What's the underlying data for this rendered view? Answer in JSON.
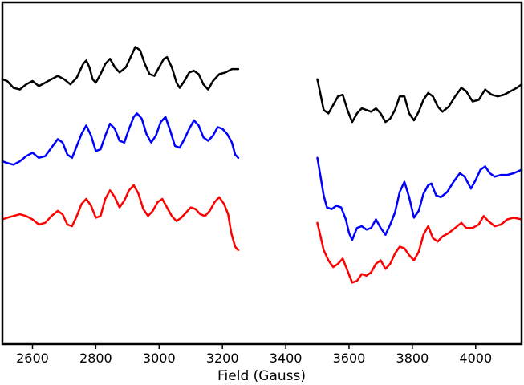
{
  "chart_data": {
    "type": "line",
    "title": "",
    "xlabel": "Field (Gauss)",
    "ylabel": "",
    "xlim": [
      2505,
      4145
    ],
    "ylim": [
      0,
      100
    ],
    "x_ticks": [
      "2600",
      "2800",
      "3000",
      "3200",
      "3400",
      "3600",
      "3800",
      "4000"
    ],
    "y_ticks": [],
    "grid": false,
    "legend": "none",
    "series": [
      {
        "color": "#000000",
        "segments": [
          [
            [
              2505,
              77.5
            ],
            [
              2520,
              77
            ],
            [
              2540,
              75
            ],
            [
              2560,
              74.5
            ],
            [
              2580,
              76
            ],
            [
              2600,
              77
            ],
            [
              2620,
              75.5
            ],
            [
              2640,
              76.5
            ],
            [
              2660,
              77.5
            ],
            [
              2680,
              78.5
            ],
            [
              2700,
              77.5
            ],
            [
              2720,
              76
            ],
            [
              2740,
              78
            ],
            [
              2760,
              82
            ],
            [
              2770,
              83
            ],
            [
              2780,
              81
            ],
            [
              2790,
              77.5
            ],
            [
              2800,
              76.5
            ],
            [
              2815,
              79
            ],
            [
              2830,
              82
            ],
            [
              2845,
              83.5
            ],
            [
              2860,
              81
            ],
            [
              2875,
              79.5
            ],
            [
              2895,
              81
            ],
            [
              2910,
              84
            ],
            [
              2925,
              87
            ],
            [
              2940,
              86
            ],
            [
              2955,
              82
            ],
            [
              2970,
              79
            ],
            [
              2985,
              78.5
            ],
            [
              3000,
              81
            ],
            [
              3015,
              83.5
            ],
            [
              3025,
              84
            ],
            [
              3040,
              81
            ],
            [
              3055,
              76.5
            ],
            [
              3065,
              75
            ],
            [
              3080,
              77
            ],
            [
              3095,
              79.5
            ],
            [
              3110,
              80
            ],
            [
              3125,
              79
            ],
            [
              3140,
              76
            ],
            [
              3155,
              74.5
            ],
            [
              3170,
              77
            ],
            [
              3190,
              79
            ],
            [
              3210,
              79.5
            ],
            [
              3230,
              80.5
            ],
            [
              3250,
              80.5
            ]
          ],
          [
            [
              3500,
              77.5
            ],
            [
              3510,
              73
            ],
            [
              3520,
              68.5
            ],
            [
              3535,
              67.5
            ],
            [
              3550,
              70
            ],
            [
              3565,
              72.5
            ],
            [
              3580,
              73
            ],
            [
              3595,
              68.5
            ],
            [
              3610,
              65
            ],
            [
              3625,
              67.5
            ],
            [
              3640,
              69
            ],
            [
              3655,
              68.5
            ],
            [
              3670,
              68
            ],
            [
              3685,
              69
            ],
            [
              3700,
              67.5
            ],
            [
              3715,
              65
            ],
            [
              3730,
              66
            ],
            [
              3745,
              68.5
            ],
            [
              3760,
              72.5
            ],
            [
              3775,
              72.5
            ],
            [
              3790,
              67.5
            ],
            [
              3805,
              65.5
            ],
            [
              3820,
              68
            ],
            [
              3835,
              71.5
            ],
            [
              3850,
              73.5
            ],
            [
              3865,
              72.5
            ],
            [
              3880,
              69.5
            ],
            [
              3895,
              68
            ],
            [
              3915,
              69.5
            ],
            [
              3935,
              72.5
            ],
            [
              3955,
              75
            ],
            [
              3970,
              74
            ],
            [
              3990,
              71
            ],
            [
              4010,
              71.5
            ],
            [
              4030,
              74.5
            ],
            [
              4050,
              73
            ],
            [
              4070,
              72.5
            ],
            [
              4090,
              73
            ],
            [
              4110,
              74
            ],
            [
              4130,
              75
            ],
            [
              4145,
              76
            ]
          ]
        ]
      },
      {
        "color": "#0000ff",
        "segments": [
          [
            [
              2505,
              53.5
            ],
            [
              2520,
              53
            ],
            [
              2540,
              52.5
            ],
            [
              2560,
              53.5
            ],
            [
              2580,
              55
            ],
            [
              2600,
              56
            ],
            [
              2620,
              54.5
            ],
            [
              2640,
              55
            ],
            [
              2660,
              57.5
            ],
            [
              2680,
              60
            ],
            [
              2695,
              59
            ],
            [
              2710,
              55.5
            ],
            [
              2725,
              54.5
            ],
            [
              2740,
              58
            ],
            [
              2755,
              61.5
            ],
            [
              2770,
              64
            ],
            [
              2785,
              61
            ],
            [
              2800,
              56.5
            ],
            [
              2815,
              57
            ],
            [
              2830,
              61
            ],
            [
              2845,
              64.5
            ],
            [
              2860,
              63
            ],
            [
              2875,
              59.5
            ],
            [
              2890,
              59
            ],
            [
              2905,
              63
            ],
            [
              2920,
              66.5
            ],
            [
              2930,
              67.5
            ],
            [
              2945,
              66
            ],
            [
              2960,
              61.5
            ],
            [
              2975,
              59
            ],
            [
              2990,
              61
            ],
            [
              3005,
              65
            ],
            [
              3020,
              66.5
            ],
            [
              3035,
              62.5
            ],
            [
              3050,
              58
            ],
            [
              3065,
              57.5
            ],
            [
              3080,
              60
            ],
            [
              3095,
              63
            ],
            [
              3110,
              65.5
            ],
            [
              3125,
              64
            ],
            [
              3140,
              60.5
            ],
            [
              3155,
              59.5
            ],
            [
              3170,
              61
            ],
            [
              3185,
              63.5
            ],
            [
              3200,
              63
            ],
            [
              3215,
              61.5
            ],
            [
              3230,
              59
            ],
            [
              3240,
              55.5
            ],
            [
              3250,
              54.5
            ]
          ],
          [
            [
              3500,
              54.5
            ],
            [
              3510,
              49
            ],
            [
              3520,
              43.5
            ],
            [
              3530,
              40
            ],
            [
              3545,
              39.5
            ],
            [
              3560,
              40.5
            ],
            [
              3575,
              40
            ],
            [
              3590,
              36.5
            ],
            [
              3600,
              32.5
            ],
            [
              3610,
              30.5
            ],
            [
              3625,
              34
            ],
            [
              3640,
              34.5
            ],
            [
              3655,
              33.5
            ],
            [
              3670,
              34
            ],
            [
              3685,
              36.5
            ],
            [
              3700,
              34
            ],
            [
              3715,
              32
            ],
            [
              3730,
              35
            ],
            [
              3745,
              38.5
            ],
            [
              3760,
              44.5
            ],
            [
              3775,
              47.5
            ],
            [
              3790,
              43
            ],
            [
              3805,
              37
            ],
            [
              3820,
              39
            ],
            [
              3835,
              44
            ],
            [
              3850,
              46.5
            ],
            [
              3860,
              47
            ],
            [
              3875,
              43.5
            ],
            [
              3890,
              43
            ],
            [
              3910,
              44.5
            ],
            [
              3930,
              47.5
            ],
            [
              3950,
              50
            ],
            [
              3965,
              49
            ],
            [
              3985,
              45.5
            ],
            [
              4000,
              48
            ],
            [
              4015,
              51
            ],
            [
              4030,
              52
            ],
            [
              4045,
              50
            ],
            [
              4060,
              49
            ],
            [
              4080,
              49.5
            ],
            [
              4100,
              49.5
            ],
            [
              4120,
              50
            ],
            [
              4145,
              51
            ]
          ]
        ]
      },
      {
        "color": "#ff0000",
        "segments": [
          [
            [
              2505,
              36.5
            ],
            [
              2520,
              37
            ],
            [
              2540,
              37.5
            ],
            [
              2560,
              38
            ],
            [
              2580,
              37.5
            ],
            [
              2600,
              36.5
            ],
            [
              2620,
              35
            ],
            [
              2640,
              35.5
            ],
            [
              2660,
              37.5
            ],
            [
              2680,
              39
            ],
            [
              2695,
              38
            ],
            [
              2710,
              35
            ],
            [
              2725,
              34.5
            ],
            [
              2740,
              37.5
            ],
            [
              2755,
              41
            ],
            [
              2770,
              42.5
            ],
            [
              2785,
              40.5
            ],
            [
              2800,
              37
            ],
            [
              2815,
              37.5
            ],
            [
              2830,
              42.5
            ],
            [
              2845,
              45
            ],
            [
              2860,
              43
            ],
            [
              2875,
              40
            ],
            [
              2890,
              42
            ],
            [
              2905,
              45
            ],
            [
              2920,
              46.5
            ],
            [
              2935,
              44
            ],
            [
              2950,
              39.5
            ],
            [
              2965,
              37.5
            ],
            [
              2980,
              39
            ],
            [
              2995,
              41.5
            ],
            [
              3010,
              42.5
            ],
            [
              3025,
              40
            ],
            [
              3040,
              37.5
            ],
            [
              3055,
              36
            ],
            [
              3070,
              37
            ],
            [
              3085,
              38.5
            ],
            [
              3100,
              40
            ],
            [
              3115,
              39.5
            ],
            [
              3130,
              38
            ],
            [
              3145,
              37.5
            ],
            [
              3160,
              39
            ],
            [
              3175,
              41.5
            ],
            [
              3190,
              43
            ],
            [
              3205,
              41
            ],
            [
              3218,
              38
            ],
            [
              3228,
              32.5
            ],
            [
              3240,
              28.5
            ],
            [
              3250,
              27.5
            ]
          ],
          [
            [
              3500,
              35.5
            ],
            [
              3510,
              31.5
            ],
            [
              3520,
              27.5
            ],
            [
              3535,
              24.5
            ],
            [
              3550,
              22.5
            ],
            [
              3565,
              23.5
            ],
            [
              3580,
              25
            ],
            [
              3595,
              21.5
            ],
            [
              3610,
              18
            ],
            [
              3625,
              18.5
            ],
            [
              3640,
              20.5
            ],
            [
              3655,
              20
            ],
            [
              3670,
              21
            ],
            [
              3685,
              23.5
            ],
            [
              3700,
              24.5
            ],
            [
              3715,
              22
            ],
            [
              3730,
              23.5
            ],
            [
              3745,
              26.5
            ],
            [
              3760,
              28.5
            ],
            [
              3775,
              28
            ],
            [
              3790,
              26
            ],
            [
              3805,
              24.5
            ],
            [
              3820,
              27
            ],
            [
              3835,
              32
            ],
            [
              3850,
              34.5
            ],
            [
              3865,
              31
            ],
            [
              3880,
              30
            ],
            [
              3895,
              31.5
            ],
            [
              3915,
              32.5
            ],
            [
              3935,
              34
            ],
            [
              3955,
              35.5
            ],
            [
              3970,
              34
            ],
            [
              3990,
              34
            ],
            [
              4010,
              35
            ],
            [
              4025,
              37.5
            ],
            [
              4040,
              36
            ],
            [
              4060,
              34.5
            ],
            [
              4080,
              35
            ],
            [
              4100,
              36.5
            ],
            [
              4120,
              37
            ],
            [
              4145,
              36.5
            ]
          ]
        ]
      }
    ]
  }
}
